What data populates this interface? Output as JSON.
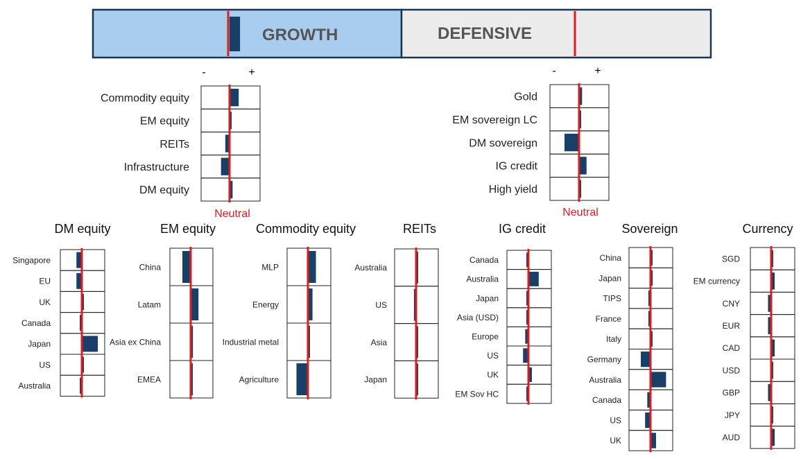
{
  "banner": {
    "growth_label": "GROWTH",
    "defensive_label": "DEFENSIVE",
    "growth_position": 0.05,
    "defensive_position": 0.0,
    "colors": {
      "growth_fill": "#a9cdef",
      "defensive_fill": "#ececec",
      "border": "#1a3550"
    }
  },
  "colors": {
    "bar": "#173f68",
    "neutral_line": "#e01b1b",
    "cell_border": "#222222",
    "neutral_text": "#e01b1b"
  },
  "scale_markers": {
    "minus": "-",
    "plus": "+"
  },
  "neutral_label": "Neutral",
  "chart_data": [
    {
      "type": "bar",
      "title": "",
      "group": "growth",
      "categories": [
        "Commodity equity",
        "EM equity",
        "REITs",
        "Infrastructure",
        "DM equity"
      ],
      "values": [
        0.3,
        0.0,
        -0.15,
        -0.3,
        0.1
      ],
      "xlim": [
        -1,
        1
      ]
    },
    {
      "type": "bar",
      "title": "",
      "group": "defensive",
      "categories": [
        "Gold",
        "EM sovereign LC",
        "DM sovereign",
        "IG credit",
        "High yield"
      ],
      "values": [
        0.1,
        0.05,
        -0.5,
        0.25,
        0.05
      ],
      "xlim": [
        -1,
        1
      ]
    },
    {
      "type": "bar",
      "title": "DM equity",
      "categories": [
        "Singapore",
        "EU",
        "UK",
        "Canada",
        "Japan",
        "US",
        "Australia"
      ],
      "values": [
        -0.25,
        -0.25,
        0.0,
        -0.05,
        0.7,
        0.0,
        -0.05
      ],
      "xlim": [
        -1,
        1
      ]
    },
    {
      "type": "bar",
      "title": "EM equity",
      "categories": [
        "China",
        "Latam",
        "Asia ex China",
        "EMEA"
      ],
      "values": [
        -0.4,
        0.35,
        0.1,
        0.0
      ],
      "xlim": [
        -1,
        1
      ]
    },
    {
      "type": "bar",
      "title": "Commodity equity",
      "categories": [
        "MLP",
        "Energy",
        "Industrial metal",
        "Agriculture"
      ],
      "values": [
        0.35,
        0.2,
        0.0,
        -0.55
      ],
      "xlim": [
        -1,
        1
      ]
    },
    {
      "type": "bar",
      "title": "REITs",
      "categories": [
        "Australia",
        "US",
        "Asia",
        "Japan"
      ],
      "values": [
        0.08,
        -0.1,
        0.05,
        0.0
      ],
      "xlim": [
        -1,
        1
      ]
    },
    {
      "type": "bar",
      "title": "IG credit",
      "categories": [
        "Canada",
        "Australia",
        "Japan",
        "Asia (USD)",
        "Europe",
        "US",
        "UK",
        "EM Sov HC"
      ],
      "values": [
        -0.05,
        0.45,
        -0.05,
        -0.1,
        -0.15,
        -0.25,
        0.15,
        -0.1
      ],
      "xlim": [
        -1,
        1
      ]
    },
    {
      "type": "bar",
      "title": "Sovereign",
      "categories": [
        "China",
        "Japan",
        "TIPS",
        "France",
        "Italy",
        "Germany",
        "Australia",
        "Canada",
        "US",
        "UK"
      ],
      "values": [
        0.0,
        0.1,
        -0.05,
        -0.05,
        0.0,
        -0.45,
        0.7,
        -0.15,
        -0.25,
        0.25
      ],
      "xlim": [
        -1,
        1
      ]
    },
    {
      "type": "bar",
      "title": "Currency",
      "categories": [
        "SGD",
        "EM currency",
        "CNY",
        "EUR",
        "CAD",
        "USD",
        "GBP",
        "JPY",
        "AUD"
      ],
      "values": [
        0.0,
        0.15,
        -0.15,
        -0.15,
        0.15,
        0.05,
        -0.15,
        0.0,
        0.15
      ],
      "xlim": [
        -1,
        1
      ]
    }
  ]
}
